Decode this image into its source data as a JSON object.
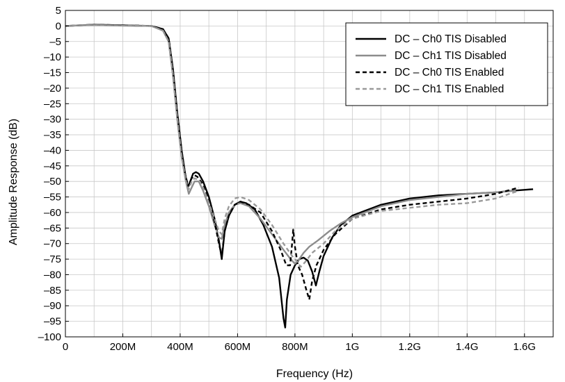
{
  "chart_data": {
    "type": "line",
    "title": "",
    "xlabel": "Frequency (Hz)",
    "ylabel": "Amplitude Response (dB)",
    "xlim": [
      0,
      1700000000
    ],
    "ylim": [
      -100,
      5
    ],
    "grid": true,
    "legend_position": "top-right",
    "x_ticks": [
      {
        "value": 0,
        "label": "0"
      },
      {
        "value": 200000000,
        "label": "200M"
      },
      {
        "value": 400000000,
        "label": "400M"
      },
      {
        "value": 600000000,
        "label": "600M"
      },
      {
        "value": 800000000,
        "label": "800M"
      },
      {
        "value": 1000000000,
        "label": "1G"
      },
      {
        "value": 1200000000,
        "label": "1.2G"
      },
      {
        "value": 1400000000,
        "label": "1.4G"
      },
      {
        "value": 1600000000,
        "label": "1.6G"
      }
    ],
    "y_ticks": [
      {
        "value": 5,
        "label": "5"
      },
      {
        "value": 0,
        "label": "0"
      },
      {
        "value": -5,
        "label": "–5"
      },
      {
        "value": -10,
        "label": "–10"
      },
      {
        "value": -15,
        "label": "–15"
      },
      {
        "value": -20,
        "label": "–20"
      },
      {
        "value": -25,
        "label": "–25"
      },
      {
        "value": -30,
        "label": "–30"
      },
      {
        "value": -35,
        "label": "–35"
      },
      {
        "value": -40,
        "label": "–40"
      },
      {
        "value": -45,
        "label": "–45"
      },
      {
        "value": -50,
        "label": "–50"
      },
      {
        "value": -55,
        "label": "–55"
      },
      {
        "value": -60,
        "label": "–60"
      },
      {
        "value": -65,
        "label": "–65"
      },
      {
        "value": -70,
        "label": "–70"
      },
      {
        "value": -75,
        "label": "–75"
      },
      {
        "value": -80,
        "label": "–80"
      },
      {
        "value": -85,
        "label": "–85"
      },
      {
        "value": -90,
        "label": "–90"
      },
      {
        "value": -95,
        "label": "–95"
      },
      {
        "value": -100,
        "label": "–100"
      }
    ],
    "series": [
      {
        "name": "DC – Ch0 TIS Disabled",
        "color": "#000000",
        "dash": "solid",
        "points": [
          [
            0,
            0
          ],
          [
            50000000,
            0.2
          ],
          [
            100000000,
            0.4
          ],
          [
            200000000,
            0.2
          ],
          [
            300000000,
            0
          ],
          [
            340000000,
            -1
          ],
          [
            360000000,
            -4
          ],
          [
            375000000,
            -14
          ],
          [
            390000000,
            -28
          ],
          [
            405000000,
            -40
          ],
          [
            418000000,
            -48
          ],
          [
            427000000,
            -52
          ],
          [
            435000000,
            -50
          ],
          [
            445000000,
            -47.5
          ],
          [
            455000000,
            -47
          ],
          [
            465000000,
            -47.5
          ],
          [
            480000000,
            -50
          ],
          [
            500000000,
            -55
          ],
          [
            520000000,
            -62
          ],
          [
            535000000,
            -69
          ],
          [
            545000000,
            -75
          ],
          [
            555000000,
            -66
          ],
          [
            570000000,
            -61
          ],
          [
            590000000,
            -57.5
          ],
          [
            610000000,
            -56.5
          ],
          [
            630000000,
            -57
          ],
          [
            660000000,
            -59
          ],
          [
            690000000,
            -64
          ],
          [
            720000000,
            -71
          ],
          [
            745000000,
            -81
          ],
          [
            760000000,
            -94
          ],
          [
            766000000,
            -97
          ],
          [
            772000000,
            -88
          ],
          [
            785000000,
            -80
          ],
          [
            800000000,
            -77
          ],
          [
            815000000,
            -75
          ],
          [
            830000000,
            -74.5
          ],
          [
            845000000,
            -75.5
          ],
          [
            860000000,
            -79
          ],
          [
            873000000,
            -83.5
          ],
          [
            885000000,
            -79
          ],
          [
            900000000,
            -74
          ],
          [
            930000000,
            -68
          ],
          [
            960000000,
            -64
          ],
          [
            1000000000,
            -61
          ],
          [
            1100000000,
            -57.5
          ],
          [
            1200000000,
            -55.5
          ],
          [
            1300000000,
            -54.5
          ],
          [
            1400000000,
            -54
          ],
          [
            1500000000,
            -53.5
          ],
          [
            1560000000,
            -53
          ],
          [
            1600000000,
            -52.7
          ],
          [
            1630000000,
            -52.5
          ]
        ]
      },
      {
        "name": "DC – Ch1 TIS Disabled",
        "color": "#8c8c8c",
        "dash": "solid",
        "points": [
          [
            0,
            0
          ],
          [
            50000000,
            0.2
          ],
          [
            100000000,
            0.3
          ],
          [
            200000000,
            0.1
          ],
          [
            300000000,
            0
          ],
          [
            340000000,
            -1.5
          ],
          [
            360000000,
            -5
          ],
          [
            375000000,
            -16
          ],
          [
            390000000,
            -30
          ],
          [
            405000000,
            -42
          ],
          [
            420000000,
            -50
          ],
          [
            430000000,
            -54
          ],
          [
            440000000,
            -52
          ],
          [
            450000000,
            -50
          ],
          [
            465000000,
            -50
          ],
          [
            480000000,
            -53
          ],
          [
            500000000,
            -58
          ],
          [
            520000000,
            -64
          ],
          [
            535000000,
            -68
          ],
          [
            545000000,
            -68.5
          ],
          [
            555000000,
            -64
          ],
          [
            570000000,
            -60
          ],
          [
            590000000,
            -57.5
          ],
          [
            610000000,
            -57
          ],
          [
            640000000,
            -58
          ],
          [
            680000000,
            -62
          ],
          [
            720000000,
            -67
          ],
          [
            760000000,
            -72
          ],
          [
            785000000,
            -75
          ],
          [
            800000000,
            -76.5
          ],
          [
            815000000,
            -75
          ],
          [
            830000000,
            -73
          ],
          [
            850000000,
            -71
          ],
          [
            880000000,
            -69
          ],
          [
            920000000,
            -66
          ],
          [
            960000000,
            -63.5
          ],
          [
            1000000000,
            -61.5
          ],
          [
            1100000000,
            -58
          ],
          [
            1200000000,
            -56
          ],
          [
            1300000000,
            -55
          ],
          [
            1400000000,
            -54
          ],
          [
            1500000000,
            -53.5
          ],
          [
            1570000000,
            -53
          ]
        ]
      },
      {
        "name": "DC – Ch0 TIS Enabled",
        "color": "#000000",
        "dash": "dashed",
        "points": [
          [
            0,
            0
          ],
          [
            50000000,
            0.2
          ],
          [
            100000000,
            0.4
          ],
          [
            200000000,
            0.2
          ],
          [
            300000000,
            0
          ],
          [
            340000000,
            -1
          ],
          [
            360000000,
            -4
          ],
          [
            375000000,
            -14
          ],
          [
            390000000,
            -28
          ],
          [
            405000000,
            -40
          ],
          [
            418000000,
            -48
          ],
          [
            428000000,
            -51.5
          ],
          [
            440000000,
            -49
          ],
          [
            450000000,
            -48
          ],
          [
            460000000,
            -48.5
          ],
          [
            480000000,
            -51
          ],
          [
            500000000,
            -56
          ],
          [
            520000000,
            -63
          ],
          [
            535000000,
            -70
          ],
          [
            545000000,
            -74
          ],
          [
            555000000,
            -66
          ],
          [
            570000000,
            -61
          ],
          [
            590000000,
            -57.5
          ],
          [
            610000000,
            -56.5
          ],
          [
            640000000,
            -57.5
          ],
          [
            680000000,
            -60
          ],
          [
            720000000,
            -66
          ],
          [
            750000000,
            -72
          ],
          [
            770000000,
            -77
          ],
          [
            783000000,
            -77
          ],
          [
            790000000,
            -70
          ],
          [
            794000000,
            -65.5
          ],
          [
            800000000,
            -71
          ],
          [
            810000000,
            -77
          ],
          [
            825000000,
            -80
          ],
          [
            840000000,
            -85
          ],
          [
            850000000,
            -88
          ],
          [
            860000000,
            -82
          ],
          [
            875000000,
            -77
          ],
          [
            900000000,
            -72
          ],
          [
            940000000,
            -67
          ],
          [
            1000000000,
            -62
          ],
          [
            1100000000,
            -59
          ],
          [
            1200000000,
            -57.5
          ],
          [
            1300000000,
            -56.5
          ],
          [
            1400000000,
            -55.5
          ],
          [
            1500000000,
            -54
          ],
          [
            1580000000,
            -52
          ]
        ]
      },
      {
        "name": "DC – Ch1 TIS Enabled",
        "color": "#999999",
        "dash": "dashed",
        "points": [
          [
            0,
            0
          ],
          [
            50000000,
            0.2
          ],
          [
            100000000,
            0.3
          ],
          [
            200000000,
            0.1
          ],
          [
            300000000,
            0
          ],
          [
            340000000,
            -1.5
          ],
          [
            360000000,
            -5
          ],
          [
            375000000,
            -16
          ],
          [
            390000000,
            -30
          ],
          [
            405000000,
            -42
          ],
          [
            420000000,
            -50
          ],
          [
            430000000,
            -52.5
          ],
          [
            440000000,
            -50
          ],
          [
            450000000,
            -49
          ],
          [
            465000000,
            -49.5
          ],
          [
            480000000,
            -52
          ],
          [
            500000000,
            -57
          ],
          [
            520000000,
            -62
          ],
          [
            535000000,
            -66
          ],
          [
            545000000,
            -67
          ],
          [
            555000000,
            -62
          ],
          [
            570000000,
            -58
          ],
          [
            590000000,
            -55.5
          ],
          [
            610000000,
            -55
          ],
          [
            640000000,
            -56
          ],
          [
            680000000,
            -59
          ],
          [
            720000000,
            -64
          ],
          [
            760000000,
            -70
          ],
          [
            790000000,
            -74
          ],
          [
            805000000,
            -75.5
          ],
          [
            820000000,
            -77.5
          ],
          [
            835000000,
            -76
          ],
          [
            860000000,
            -73
          ],
          [
            900000000,
            -70
          ],
          [
            940000000,
            -66
          ],
          [
            1000000000,
            -62
          ],
          [
            1100000000,
            -59.5
          ],
          [
            1200000000,
            -58.5
          ],
          [
            1300000000,
            -57.5
          ],
          [
            1400000000,
            -57
          ],
          [
            1500000000,
            -55.5
          ],
          [
            1580000000,
            -53
          ]
        ]
      }
    ]
  }
}
